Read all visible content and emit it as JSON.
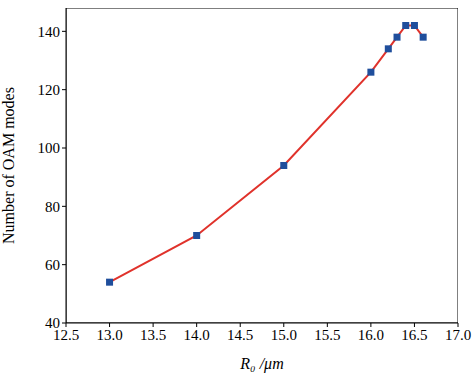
{
  "chart_data": {
    "type": "line",
    "x_label": "R₀ /μm",
    "y_label": "Number of OAM modes",
    "x": [
      13.0,
      14.0,
      15.0,
      16.0,
      16.2,
      16.3,
      16.4,
      16.5,
      16.6
    ],
    "values": [
      54,
      70,
      94,
      126,
      134,
      138,
      142,
      142,
      138
    ],
    "color": "#e0322b",
    "marker": "square",
    "line_style": "solid",
    "xlim": [
      12.5,
      17.0
    ],
    "xticks": [
      12.5,
      {
        "value": 13,
        "label": "13.0"
      },
      13.5,
      {
        "value": 14,
        "label": "14.0"
      },
      14.5,
      {
        "value": 15,
        "label": "15.0"
      },
      15.5,
      {
        "value": 16,
        "label": "16.0"
      },
      16.5,
      {
        "value": 17,
        "label": "17.0"
      }
    ],
    "ylim": [
      40,
      148
    ],
    "yticks": [
      40,
      60,
      80,
      100,
      120,
      140
    ],
    "grid": false
  }
}
